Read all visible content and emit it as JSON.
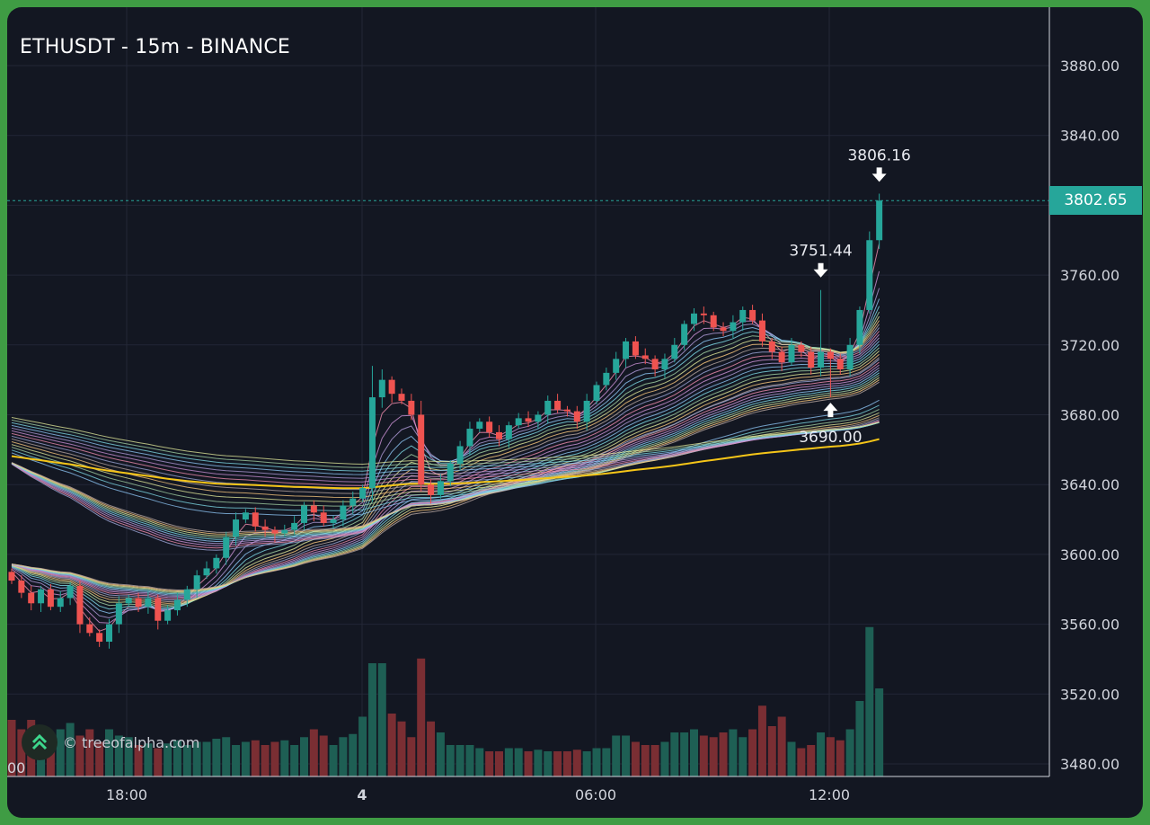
{
  "title": "ETHUSDT - 15m - BINANCE",
  "watermark": {
    "text": "© treeofalpha.com",
    "logo_icon": "tree-of-alpha-logo-icon"
  },
  "last_price": "3802.65",
  "colors": {
    "background": "#131722",
    "frame": "#3f9c44",
    "up": "#26a69a",
    "down": "#ef5350",
    "volume_up": "#1e5f54",
    "volume_down": "#7a2e33",
    "grid": "#232736",
    "accent": "#26a69a"
  },
  "chart_data": {
    "type": "candlestick",
    "symbol": "ETHUSDT",
    "interval": "15m",
    "exchange": "BINANCE",
    "y_ticks": [
      "3880.00",
      "3840.00",
      "3800.00",
      "3760.00",
      "3720.00",
      "3680.00",
      "3640.00",
      "3600.00",
      "3560.00",
      "3520.00",
      "3480.00"
    ],
    "ylim": [
      3474,
      3900
    ],
    "x_ticks": [
      {
        "label": "18:00",
        "bold": false
      },
      {
        "label": "4",
        "bold": true
      },
      {
        "label": "06:00",
        "bold": false
      },
      {
        "label": "12:00",
        "bold": false
      }
    ],
    "x_edge_label": "00",
    "annotations": [
      {
        "text": "3806.16",
        "type": "high",
        "price": 3806.16
      },
      {
        "text": "3751.44",
        "type": "high",
        "price": 3751.44
      },
      {
        "text": "3690.00",
        "type": "low",
        "price": 3690.0
      }
    ],
    "grid": true,
    "indicators": [
      "multi-length moving average ribbons"
    ],
    "candles": {
      "close": [
        3585,
        3578,
        3572,
        3580,
        3570,
        3575,
        3582,
        3560,
        3555,
        3550,
        3560,
        3572,
        3575,
        3570,
        3575,
        3562,
        3568,
        3574,
        3580,
        3588,
        3592,
        3598,
        3610,
        3620,
        3624,
        3616,
        3614,
        3612,
        3614,
        3618,
        3628,
        3624,
        3618,
        3620,
        3628,
        3632,
        3638,
        3690,
        3700,
        3692,
        3688,
        3680,
        3640,
        3634,
        3642,
        3652,
        3662,
        3672,
        3676,
        3670,
        3666,
        3674,
        3678,
        3676,
        3680,
        3688,
        3683,
        3682,
        3676,
        3688,
        3697,
        3704,
        3712,
        3722,
        3714,
        3712,
        3706,
        3712,
        3720,
        3732,
        3738,
        3737,
        3730,
        3728,
        3733,
        3740,
        3734,
        3722,
        3716,
        3710,
        3720,
        3716,
        3707,
        3716,
        3712,
        3706,
        3720,
        3740,
        3780,
        3802.65
      ],
      "volume": [
        36,
        30,
        36,
        28,
        25,
        30,
        34,
        26,
        30,
        22,
        30,
        26,
        25,
        20,
        21,
        18,
        21,
        23,
        20,
        22,
        22,
        24,
        25,
        20,
        22,
        23,
        20,
        22,
        23,
        20,
        25,
        30,
        26,
        20,
        25,
        27,
        38,
        72,
        72,
        40,
        35,
        25,
        75,
        35,
        28,
        20,
        20,
        20,
        18,
        16,
        16,
        18,
        18,
        16,
        17,
        16,
        16,
        16,
        17,
        16,
        18,
        18,
        26,
        26,
        22,
        20,
        20,
        22,
        28,
        28,
        30,
        26,
        25,
        28,
        30,
        25,
        30,
        45,
        32,
        38,
        22,
        18,
        20,
        28,
        25,
        23,
        30,
        48,
        95,
        56
      ]
    }
  }
}
